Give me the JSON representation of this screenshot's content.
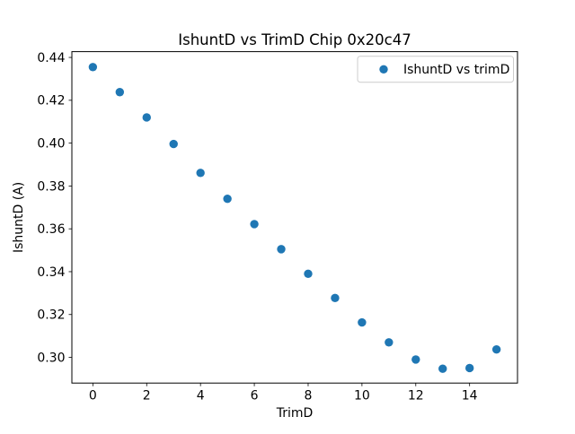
{
  "chart_data": {
    "type": "scatter",
    "title": "IshuntD vs TrimD Chip 0x20c47",
    "xlabel": "TrimD",
    "ylabel": "IshuntD (A)",
    "legend": {
      "label": "IshuntD vs trimD",
      "position": "upper right"
    },
    "marker_color": "#1f77b4",
    "x": [
      0,
      1,
      2,
      3,
      4,
      5,
      6,
      7,
      8,
      9,
      10,
      11,
      12,
      13,
      14,
      15
    ],
    "y": [
      0.4355,
      0.4238,
      0.412,
      0.3996,
      0.3861,
      0.374,
      0.3622,
      0.3505,
      0.339,
      0.3277,
      0.3163,
      0.307,
      0.299,
      0.2947,
      0.295,
      0.3037
    ],
    "xlim": [
      -0.78,
      15.78
    ],
    "ylim": [
      0.288,
      0.4427
    ],
    "xticks": [
      0,
      2,
      4,
      6,
      8,
      10,
      12,
      14
    ],
    "ytick_values": [
      0.3,
      0.32,
      0.34,
      0.36,
      0.38,
      0.4,
      0.42,
      0.44
    ],
    "ytick_labels": [
      "0.30",
      "0.32",
      "0.34",
      "0.36",
      "0.38",
      "0.40",
      "0.42",
      "0.44"
    ],
    "grid": false
  }
}
